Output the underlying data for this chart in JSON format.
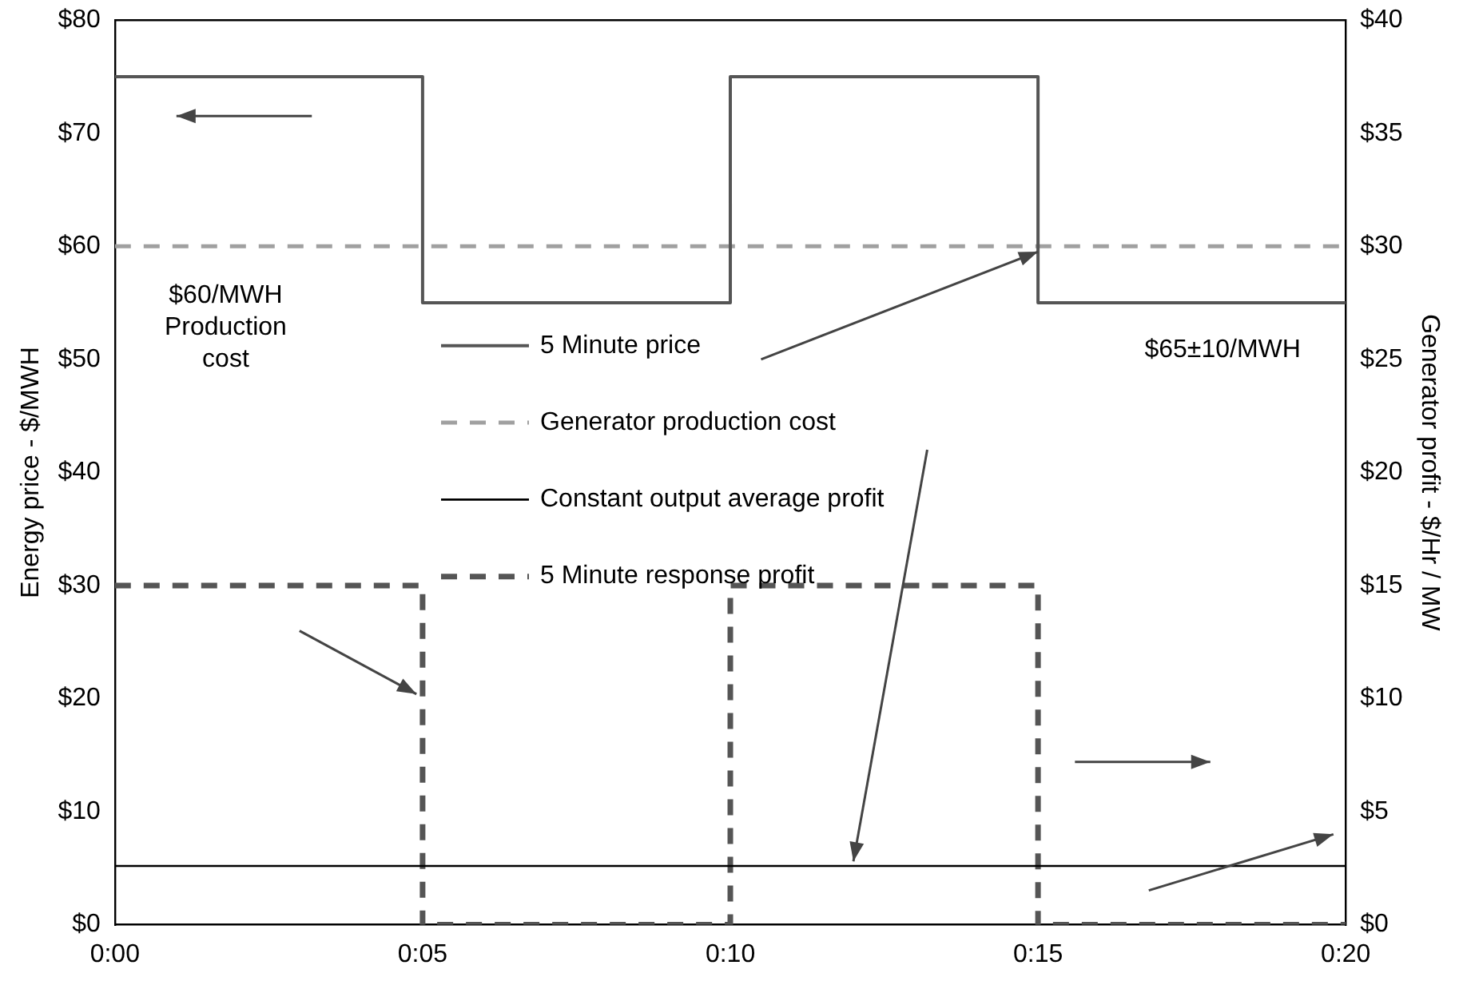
{
  "chart_data": {
    "type": "line",
    "xlabel": null,
    "ylabel": "Energy price - $/MWH",
    "y2label": "Generator profit - $/Hr / MW",
    "xlim": [
      0,
      0.33333
    ],
    "xticks": [
      {
        "value": 0,
        "label": "0:00"
      },
      {
        "value": 0.08333,
        "label": "0:05"
      },
      {
        "value": 0.16667,
        "label": "0:10"
      },
      {
        "value": 0.25,
        "label": "0:15"
      },
      {
        "value": 0.33333,
        "label": "0:20"
      }
    ],
    "ylim": [
      0,
      80
    ],
    "yticks": [
      {
        "value": 0,
        "label": "$0"
      },
      {
        "value": 10,
        "label": "$10"
      },
      {
        "value": 20,
        "label": "$20"
      },
      {
        "value": 30,
        "label": "$30"
      },
      {
        "value": 40,
        "label": "$40"
      },
      {
        "value": 50,
        "label": "$50"
      },
      {
        "value": 60,
        "label": "$60"
      },
      {
        "value": 70,
        "label": "$70"
      },
      {
        "value": 80,
        "label": "$80"
      }
    ],
    "y2lim": [
      0,
      40
    ],
    "y2ticks": [
      {
        "value": 0,
        "label": "$0"
      },
      {
        "value": 5,
        "label": "$5"
      },
      {
        "value": 10,
        "label": "$10"
      },
      {
        "value": 15,
        "label": "$15"
      },
      {
        "value": 20,
        "label": "$20"
      },
      {
        "value": 25,
        "label": "$25"
      },
      {
        "value": 30,
        "label": "$30"
      },
      {
        "value": 35,
        "label": "$35"
      },
      {
        "value": 40,
        "label": "$40"
      }
    ],
    "series": [
      {
        "name": "5 Minute price",
        "type": "step",
        "color": "#555555",
        "line_style": "solid",
        "x": [
          0,
          0.08333,
          0.16667,
          0.25,
          0.33333
        ],
        "values": [
          75,
          55,
          75,
          55,
          55
        ]
      },
      {
        "name": "Generator production cost",
        "type": "line",
        "color": "#a0a0a0",
        "line_style": "dashed",
        "x": [
          0,
          0.33333
        ],
        "values": [
          60,
          60
        ]
      },
      {
        "name": "Constant output average profit",
        "type": "line",
        "axis": "y2",
        "color": "#000000",
        "line_style": "solid",
        "x": [
          0,
          0.33333
        ],
        "values": [
          2.6,
          2.6
        ]
      },
      {
        "name": "5 Minute response profit",
        "type": "step",
        "axis": "y2",
        "color": "#555555",
        "line_style": "dashed",
        "x": [
          0,
          0.08333,
          0.16667,
          0.25,
          0.33333
        ],
        "values": [
          15,
          0,
          15,
          0,
          0
        ]
      }
    ],
    "annotations": [
      "$60/MWH Production cost",
      "$65±10/MWH"
    ],
    "legend": "center",
    "grid": false,
    "marker": "none"
  }
}
